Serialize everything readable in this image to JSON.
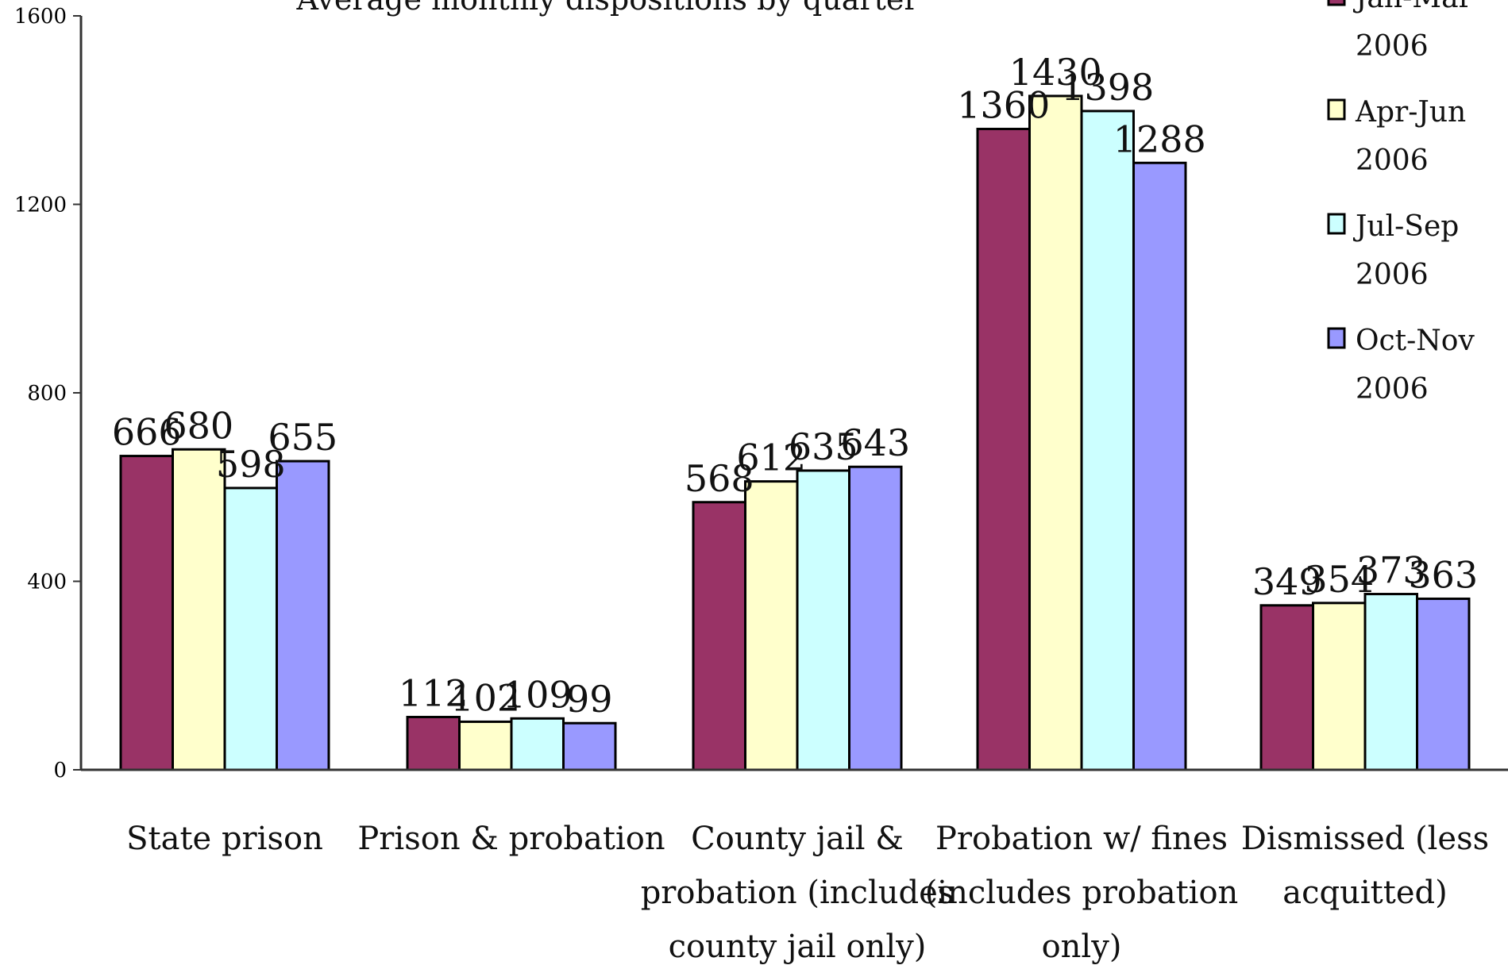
{
  "chart_data": {
    "type": "bar",
    "title": "Average monthly dispositions by quarter",
    "xlabel": "",
    "ylabel": "",
    "ylim": [
      0,
      1600
    ],
    "yticks": [
      0,
      400,
      800,
      1200,
      1600
    ],
    "grid": false,
    "legend_position": "top-right",
    "categories": [
      [
        "State prison"
      ],
      [
        "Prison & probation"
      ],
      [
        "County jail &",
        "probation (includes",
        "county jail only)"
      ],
      [
        "Probation w/ fines",
        "(includes probation",
        "only)"
      ],
      [
        "Dismissed (less",
        "acquitted)"
      ]
    ],
    "series": [
      {
        "name": [
          "Jan-Mar",
          "2006"
        ],
        "color": "#993366",
        "values": [
          666,
          112,
          568,
          1360,
          349
        ]
      },
      {
        "name": [
          "Apr-Jun",
          "2006"
        ],
        "color": "#FFFFCC",
        "values": [
          680,
          102,
          612,
          1430,
          354
        ]
      },
      {
        "name": [
          "Jul-Sep",
          "2006"
        ],
        "color": "#CCFFFF",
        "values": [
          598,
          109,
          635,
          1398,
          373
        ]
      },
      {
        "name": [
          "Oct-Nov",
          "2006"
        ],
        "color": "#9999FF",
        "values": [
          655,
          99,
          643,
          1288,
          363
        ]
      }
    ]
  }
}
